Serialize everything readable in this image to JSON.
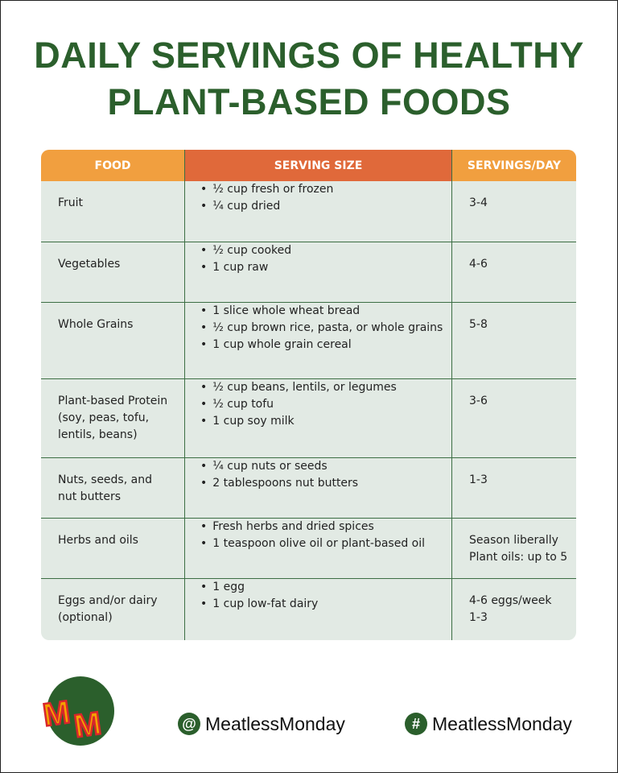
{
  "title": [
    "DAILY SERVINGS OF HEALTHY",
    "PLANT-BASED FOODS"
  ],
  "table": {
    "headers": [
      "FOOD",
      "SERVING SIZE",
      "SERVINGS/DAY"
    ],
    "rows": [
      {
        "food": [
          "Fruit"
        ],
        "sizes": [
          "½ cup fresh or frozen",
          "¼ cup dried"
        ],
        "servings": [
          "3-4"
        ]
      },
      {
        "food": [
          "Vegetables"
        ],
        "sizes": [
          "½ cup cooked",
          "1 cup raw"
        ],
        "servings": [
          "4-6"
        ]
      },
      {
        "food": [
          "Whole Grains"
        ],
        "sizes": [
          "1 slice whole wheat bread",
          "½ cup brown rice, pasta, or whole grains",
          "1 cup whole grain cereal"
        ],
        "servings": [
          "5-8"
        ]
      },
      {
        "food": [
          "Plant-based Protein",
          "(soy, peas, tofu,",
          "lentils, beans)"
        ],
        "sizes": [
          "½ cup beans, lentils, or legumes",
          "½ cup tofu",
          "1 cup soy milk"
        ],
        "servings": [
          "3-6"
        ]
      },
      {
        "food": [
          "Nuts, seeds, and",
          "nut butters"
        ],
        "sizes": [
          "¼ cup nuts or seeds",
          "2 tablespoons nut butters"
        ],
        "servings": [
          "1-3"
        ]
      },
      {
        "food": [
          "Herbs and oils"
        ],
        "sizes": [
          "Fresh herbs and dried spices",
          "1 teaspoon olive oil or plant-based oil"
        ],
        "servings": [
          "Season liberally",
          "Plant oils: up to 5"
        ]
      },
      {
        "food": [
          "Eggs and/or dairy",
          "(optional)"
        ],
        "sizes": [
          "1 egg",
          "1 cup low-fat dairy"
        ],
        "servings": [
          "4-6 eggs/week",
          "1-3"
        ]
      }
    ]
  },
  "footer": {
    "logo_text": "MM",
    "social": [
      {
        "icon": "at-icon",
        "symbol": "@",
        "handle": "MeatlessMonday"
      },
      {
        "icon": "hashtag-icon",
        "symbol": "#",
        "handle": "MeatlessMonday"
      }
    ]
  },
  "colors": {
    "title": "#2b5f2c",
    "header_orange": "#f19f3f",
    "header_red": "#e0693a",
    "row_bg": "#e2eae4",
    "lines": "#3c6e44"
  }
}
